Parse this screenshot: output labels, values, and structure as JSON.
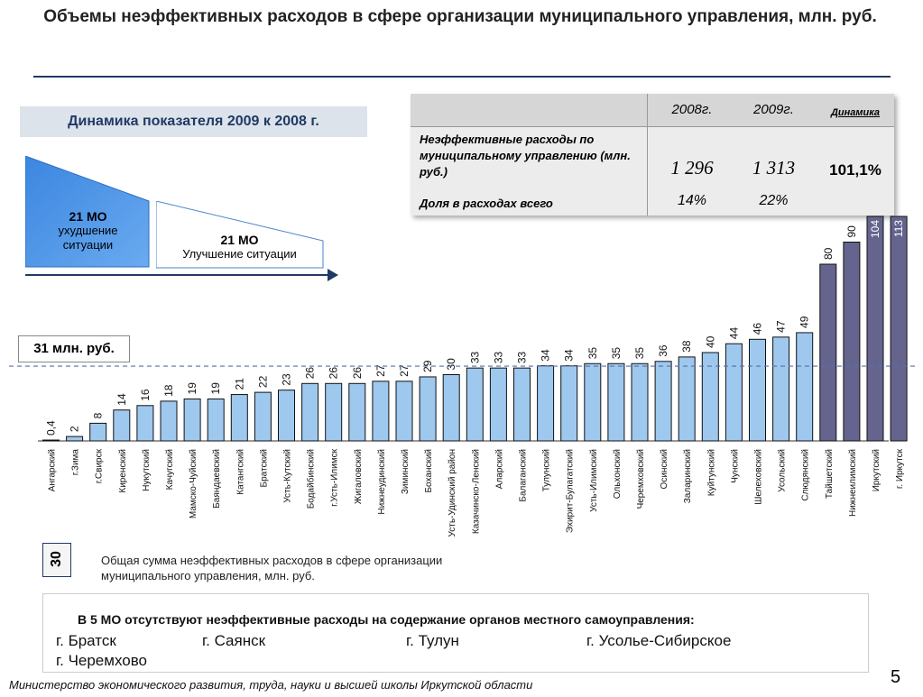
{
  "title": "Объемы неэффективных расходов в сфере организации муниципального управления, млн. руб.",
  "dynamics": {
    "title": "Динамика показателя 2009 к 2008 г.",
    "worse_count": "21 МО",
    "worse_label": "ухудшение ситуации",
    "better_count": "21  МО",
    "better_label": "Улучшение ситуации"
  },
  "table": {
    "col_2008": "2008г.",
    "col_2009": "2009г.",
    "col_dyn": "Динамика",
    "row1_label": "Неэффективные расходы по муниципальному управлению (млн. руб.)",
    "row1_2008": "1 296",
    "row1_2009": "1 313",
    "row1_dyn": "101,1%",
    "row2_label": "Доля в расходах всего",
    "row2_2008": "14%",
    "row2_2009": "22%"
  },
  "average_label": "31 млн. руб.",
  "legend": {
    "sample_value": "30",
    "text": "Общая сумма неэффективных расходов в сфере организации муниципального управления, млн. руб."
  },
  "note": {
    "heading": "В 5 МО отсутствуют неэффективные расходы  на содержание органов местного самоуправления:",
    "cities": [
      "г. Братск",
      "г. Саянск",
      "г. Тулун",
      "г. Усолье-Сибирское",
      "г. Черемхово"
    ]
  },
  "footer": "Министерство экономического развития, труда, науки и высшей школы Иркутской области",
  "page_number": "5",
  "chart_data": {
    "type": "bar",
    "title": "",
    "categories": [
      "Ангарский",
      "г.Зима",
      "г.Свирск",
      "Киренский",
      "Нукутский",
      "Качугский",
      "Мамско-Чуйский",
      "Баяндаевский",
      "Катангский",
      "Братский",
      "Усть-Кутский",
      "Бодайбинский",
      "г.Усть-Илимск",
      "Жигаловский",
      "Нижнеудинский",
      "Зиминский",
      "Боханский",
      "Усть-Удинский район",
      "Казачинско-Ленский",
      "Аларский",
      "Балаганский",
      "Тулунский",
      "Эхирит-Булагатский",
      "Усть-Илимский",
      "Ольхонский",
      "Черемховский",
      "Осинский",
      "Заларинский",
      "Куйтунский",
      "Чунский",
      "Шелеховский",
      "Усольский",
      "Слюдянский",
      "Тайшетский",
      "Нижнеилимский",
      "Иркутский",
      "г. Иркутск"
    ],
    "values": [
      0.4,
      2,
      8,
      14,
      16,
      18,
      19,
      19,
      21,
      22,
      23,
      26,
      26,
      26,
      27,
      27,
      29,
      30,
      33,
      33,
      33,
      34,
      34,
      35,
      35,
      35,
      36,
      38,
      40,
      44,
      46,
      47,
      49,
      80,
      90,
      104,
      113
    ],
    "value_labels": [
      "0,4",
      "2",
      "8",
      "14",
      "16",
      "18",
      "19",
      "19",
      "21",
      "22",
      "23",
      "26",
      "26",
      "26",
      "27",
      "27",
      "29",
      "30",
      "33",
      "33",
      "33",
      "34",
      "34",
      "35",
      "35",
      "35",
      "36",
      "38",
      "40",
      "44",
      "46",
      "47",
      "49",
      "80",
      "90",
      "104",
      "113"
    ],
    "average": 31,
    "colors": {
      "normal": "#9ec8ee",
      "high": "#65648e",
      "edge": "#111111",
      "average_line": "#5b6ea8"
    },
    "high_threshold": 80
  }
}
